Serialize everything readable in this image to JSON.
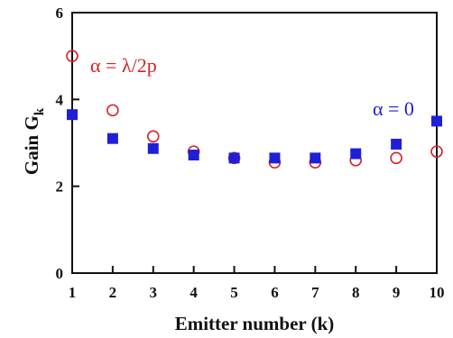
{
  "chart_data": {
    "type": "scatter",
    "title": "",
    "xlabel": "Emitter number (k)",
    "ylabel_main": "Gain G",
    "ylabel_sub": "k",
    "xlim": [
      1,
      10
    ],
    "ylim": [
      0,
      6
    ],
    "x_ticks": [
      1,
      2,
      3,
      4,
      5,
      6,
      7,
      8,
      9,
      10
    ],
    "y_ticks": [
      0,
      2,
      4,
      6
    ],
    "grid": false,
    "series": [
      {
        "name": "α = λ/2p",
        "marker": "open-circle",
        "color": "#d6222a",
        "x": [
          1,
          2,
          3,
          4,
          5,
          6,
          7,
          8,
          9,
          10
        ],
        "y": [
          5.0,
          3.75,
          3.15,
          2.8,
          2.65,
          2.55,
          2.55,
          2.6,
          2.65,
          2.8
        ]
      },
      {
        "name": "α = 0",
        "marker": "filled-square",
        "color": "#1f1fd8",
        "x": [
          1,
          2,
          3,
          4,
          5,
          6,
          7,
          8,
          9,
          10
        ],
        "y": [
          3.65,
          3.1,
          2.87,
          2.72,
          2.65,
          2.65,
          2.65,
          2.75,
          2.97,
          3.5
        ]
      }
    ]
  }
}
